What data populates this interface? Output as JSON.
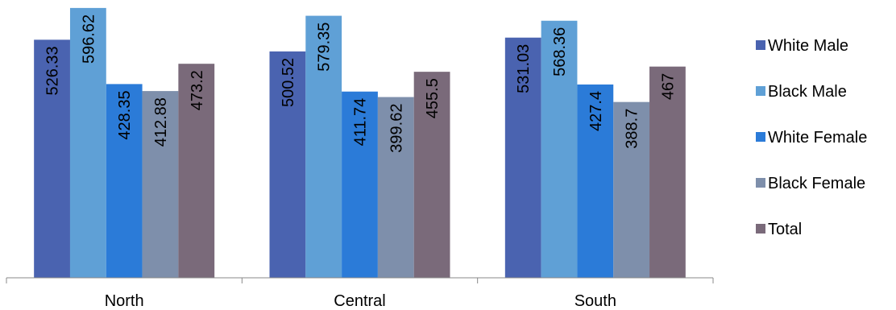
{
  "chart_data": {
    "type": "bar",
    "title": "",
    "xlabel": "",
    "ylabel": "",
    "ylim": [
      0,
      620
    ],
    "grid": false,
    "legend_position": "right",
    "categories": [
      "North",
      "Central",
      "South"
    ],
    "series": [
      {
        "name": "White Male",
        "color": "#4a63b0",
        "values": [
          526.33,
          500.52,
          531.03
        ],
        "labels": [
          "526.33",
          "500.52",
          "531.03"
        ]
      },
      {
        "name": "Black Male",
        "color": "#5fa0d6",
        "values": [
          596.62,
          579.35,
          568.36
        ],
        "labels": [
          "596.62",
          "579.35",
          "568.36"
        ]
      },
      {
        "name": "White Female",
        "color": "#2b7bd8",
        "values": [
          428.35,
          411.74,
          427.4
        ],
        "labels": [
          "428.35",
          "411.74",
          "427.4"
        ]
      },
      {
        "name": "Black Female",
        "color": "#7e8fab",
        "values": [
          412.88,
          399.62,
          388.7
        ],
        "labels": [
          "412.88",
          "399.62",
          "388.7"
        ]
      },
      {
        "name": "Total",
        "color": "#7a6a7a",
        "values": [
          473.2,
          455.5,
          467
        ],
        "labels": [
          "473.2",
          "455.5",
          "467"
        ]
      }
    ]
  }
}
